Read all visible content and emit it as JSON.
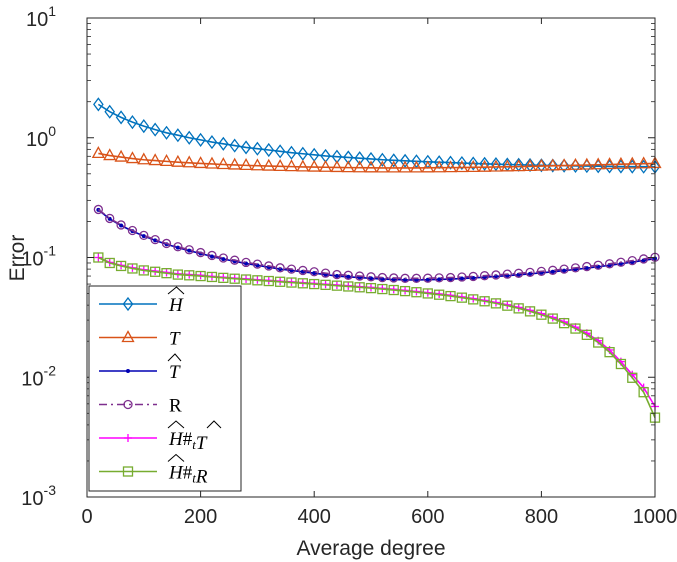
{
  "chart_data": {
    "type": "line",
    "title": "",
    "xlabel": "Average degree",
    "ylabel": "Error",
    "xlim": [
      0,
      1000
    ],
    "ylim": [
      0.001,
      10
    ],
    "yscale": "log",
    "grid": false,
    "legend_position": "bottom-left",
    "x_ticks": [
      "0",
      "200",
      "400",
      "600",
      "800",
      "1000"
    ],
    "y_ticks": [
      {
        "base": "10",
        "exp": "-3"
      },
      {
        "base": "10",
        "exp": "-2"
      },
      {
        "base": "10",
        "exp": "-1"
      },
      {
        "base": "10",
        "exp": "0"
      },
      {
        "base": "10",
        "exp": "1"
      }
    ],
    "x": [
      20,
      40,
      60,
      80,
      100,
      120,
      140,
      160,
      180,
      200,
      220,
      240,
      260,
      280,
      300,
      320,
      340,
      360,
      380,
      400,
      420,
      440,
      460,
      480,
      500,
      520,
      540,
      560,
      580,
      600,
      620,
      640,
      660,
      680,
      700,
      720,
      740,
      760,
      780,
      800,
      820,
      840,
      860,
      880,
      900,
      920,
      940,
      960,
      980,
      1000
    ],
    "series": [
      {
        "name": "H-hat",
        "label_main": "H",
        "label_hat": true,
        "color": "#0072BD",
        "marker": "diamond",
        "values": [
          1.9,
          1.65,
          1.48,
          1.35,
          1.25,
          1.17,
          1.1,
          1.05,
          1.0,
          0.96,
          0.92,
          0.89,
          0.86,
          0.83,
          0.81,
          0.79,
          0.77,
          0.75,
          0.735,
          0.72,
          0.705,
          0.695,
          0.685,
          0.675,
          0.665,
          0.655,
          0.648,
          0.642,
          0.636,
          0.63,
          0.625,
          0.62,
          0.615,
          0.61,
          0.606,
          0.602,
          0.598,
          0.595,
          0.592,
          0.589,
          0.586,
          0.584,
          0.582,
          0.58,
          0.578,
          0.576,
          0.575,
          0.574,
          0.573,
          0.572
        ]
      },
      {
        "name": "T",
        "label_main": "T",
        "label_hat": false,
        "color": "#D95319",
        "marker": "triangle",
        "values": [
          0.74,
          0.71,
          0.69,
          0.67,
          0.655,
          0.645,
          0.635,
          0.625,
          0.618,
          0.61,
          0.604,
          0.598,
          0.593,
          0.588,
          0.584,
          0.58,
          0.577,
          0.574,
          0.571,
          0.569,
          0.567,
          0.565,
          0.563,
          0.562,
          0.561,
          0.56,
          0.56,
          0.56,
          0.56,
          0.561,
          0.562,
          0.563,
          0.564,
          0.566,
          0.568,
          0.57,
          0.572,
          0.574,
          0.577,
          0.58,
          0.583,
          0.586,
          0.589,
          0.592,
          0.595,
          0.598,
          0.601,
          0.604,
          0.607,
          0.61
        ]
      },
      {
        "name": "T-hat",
        "label_main": "T",
        "label_hat": true,
        "color": "#0000B4",
        "marker": "dot",
        "values": [
          0.25,
          0.21,
          0.185,
          0.166,
          0.151,
          0.139,
          0.129,
          0.121,
          0.114,
          0.108,
          0.102,
          0.097,
          0.093,
          0.089,
          0.086,
          0.083,
          0.08,
          0.078,
          0.076,
          0.074,
          0.072,
          0.07,
          0.069,
          0.068,
          0.067,
          0.066,
          0.0655,
          0.065,
          0.065,
          0.0652,
          0.0656,
          0.066,
          0.0667,
          0.0675,
          0.0685,
          0.0695,
          0.0705,
          0.0717,
          0.073,
          0.0745,
          0.076,
          0.0777,
          0.0795,
          0.0815,
          0.0837,
          0.086,
          0.0887,
          0.0915,
          0.0945,
          0.098
        ]
      },
      {
        "name": "R",
        "label_main": "R",
        "label_hat": false,
        "upright": true,
        "color": "#7E2F8E",
        "marker": "circle",
        "values": [
          0.252,
          0.212,
          0.187,
          0.168,
          0.153,
          0.141,
          0.131,
          0.123,
          0.116,
          0.11,
          0.104,
          0.099,
          0.095,
          0.091,
          0.088,
          0.085,
          0.082,
          0.08,
          0.078,
          0.076,
          0.074,
          0.072,
          0.071,
          0.07,
          0.069,
          0.068,
          0.0675,
          0.067,
          0.067,
          0.0672,
          0.0676,
          0.068,
          0.0687,
          0.0695,
          0.0705,
          0.0715,
          0.0726,
          0.0738,
          0.0751,
          0.0766,
          0.0782,
          0.08,
          0.0819,
          0.084,
          0.0862,
          0.0886,
          0.0913,
          0.0942,
          0.0973,
          0.1005
        ]
      },
      {
        "name": "H-hat #_t T-hat",
        "label_main": "H#T",
        "label_hat": true,
        "color": "#FF00FF",
        "marker": "plus",
        "values": [
          0.1,
          0.091,
          0.086,
          0.082,
          0.079,
          0.077,
          0.075,
          0.073,
          0.072,
          0.071,
          0.0695,
          0.0683,
          0.0672,
          0.0662,
          0.0652,
          0.0643,
          0.0634,
          0.0625,
          0.0616,
          0.0607,
          0.0598,
          0.0589,
          0.058,
          0.0571,
          0.0562,
          0.0552,
          0.0542,
          0.0531,
          0.052,
          0.0508,
          0.0496,
          0.0483,
          0.0469,
          0.0454,
          0.0438,
          0.0421,
          0.0403,
          0.0383,
          0.0362,
          0.034,
          0.0316,
          0.029,
          0.0262,
          0.0233,
          0.0202,
          0.0169,
          0.0135,
          0.0105,
          0.0082,
          0.0057
        ]
      },
      {
        "name": "H-hat #_t R",
        "label_main": "H#R",
        "label_hat": true,
        "color": "#77AC30",
        "marker": "square",
        "values": [
          0.1,
          0.09,
          0.085,
          0.081,
          0.078,
          0.076,
          0.074,
          0.072,
          0.071,
          0.07,
          0.0688,
          0.0676,
          0.0665,
          0.0655,
          0.0645,
          0.0636,
          0.0627,
          0.0618,
          0.0609,
          0.06,
          0.0591,
          0.0582,
          0.0573,
          0.0564,
          0.0555,
          0.0545,
          0.0535,
          0.0524,
          0.0513,
          0.0501,
          0.0489,
          0.0476,
          0.0462,
          0.0447,
          0.0431,
          0.0414,
          0.0396,
          0.0376,
          0.0355,
          0.0333,
          0.0309,
          0.0283,
          0.0255,
          0.0226,
          0.0195,
          0.0162,
          0.0129,
          0.0099,
          0.0075,
          0.0046
        ]
      }
    ]
  }
}
